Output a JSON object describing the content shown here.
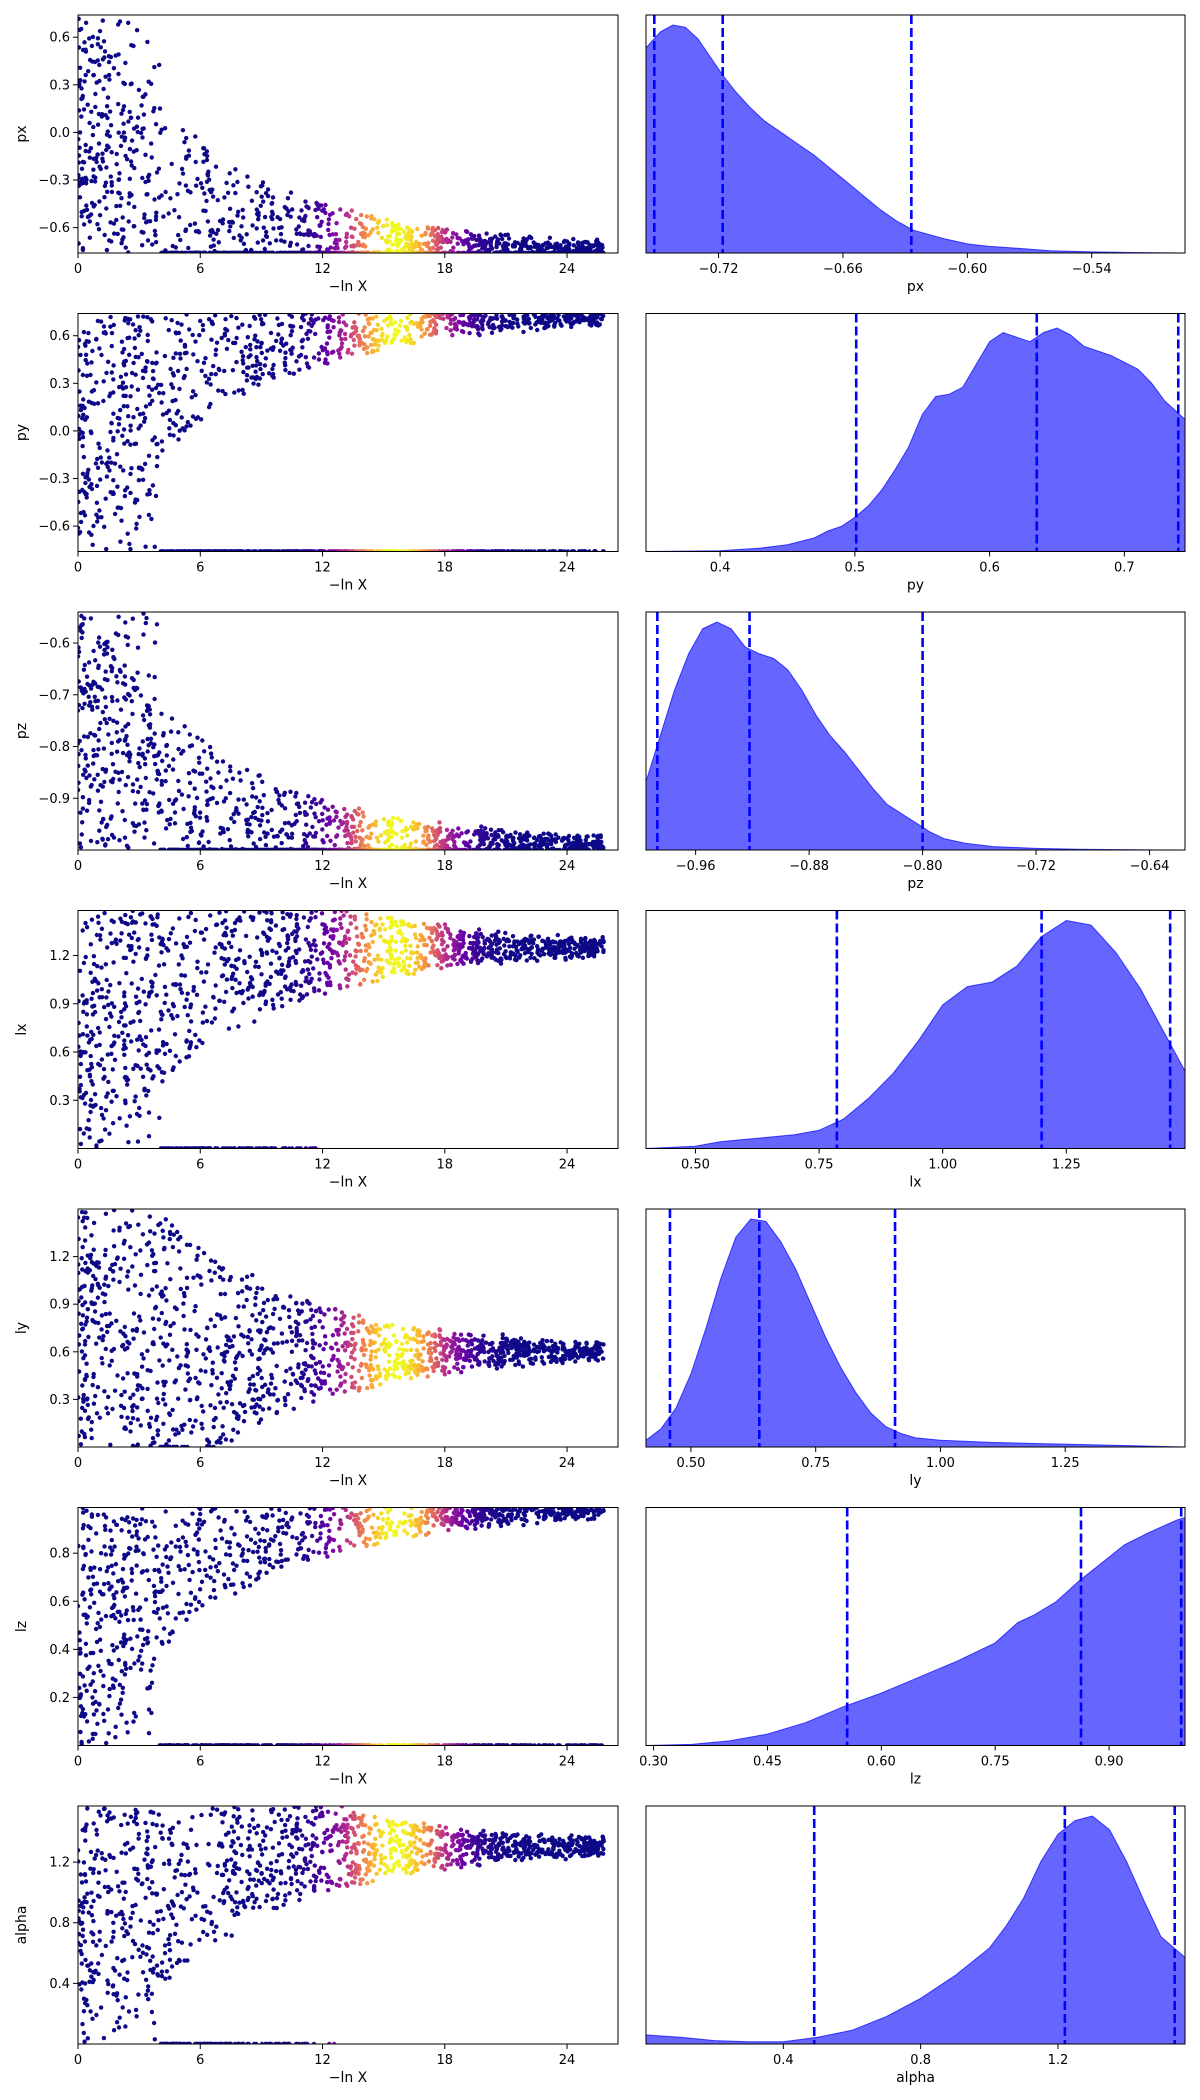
{
  "figure": {
    "type": "dynesty-trace-plot",
    "trace_xlabel": "−ln X",
    "scatter_colormap": "plasma",
    "kde_fill_color": "#0000ff",
    "kde_fill_opacity": 0.6,
    "quantile_line_color": "#0000ff",
    "quantile_line_style": "dashed"
  },
  "chart_data": [
    {
      "param": "px",
      "trace": {
        "type": "scatter",
        "xlabel": "−ln X",
        "ylabel": "px",
        "xlim": [
          0,
          26.5
        ],
        "xticks": [
          "0",
          "6",
          "12",
          "18",
          "24"
        ],
        "ylim": [
          -0.76,
          0.74
        ],
        "yticks": [
          "0.6",
          "0.3",
          "0.0",
          "−0.3",
          "−0.6"
        ],
        "ytick_values": [
          0.6,
          0.3,
          0.0,
          -0.3,
          -0.6
        ],
        "converge_to": -0.74
      },
      "posterior": {
        "type": "area",
        "xlabel": "px",
        "xlim": [
          -0.755,
          -0.495
        ],
        "xticks": [
          "−0.72",
          "−0.66",
          "−0.60",
          "−0.54"
        ],
        "xtick_values": [
          -0.72,
          -0.66,
          -0.6,
          -0.54
        ],
        "quantiles": [
          -0.751,
          -0.718,
          -0.627
        ],
        "density": {
          "x": [
            -0.755,
            -0.748,
            -0.742,
            -0.736,
            -0.73,
            -0.724,
            -0.718,
            -0.712,
            -0.705,
            -0.698,
            -0.69,
            -0.682,
            -0.674,
            -0.666,
            -0.658,
            -0.65,
            -0.642,
            -0.634,
            -0.626,
            -0.618,
            -0.61,
            -0.6,
            -0.59,
            -0.575,
            -0.56,
            -0.54,
            -0.52,
            -0.495
          ],
          "y": [
            0.9,
            0.97,
            1.0,
            0.99,
            0.94,
            0.86,
            0.78,
            0.71,
            0.64,
            0.58,
            0.53,
            0.48,
            0.43,
            0.37,
            0.31,
            0.25,
            0.19,
            0.14,
            0.1,
            0.08,
            0.06,
            0.04,
            0.03,
            0.02,
            0.01,
            0.005,
            0.002,
            0.0
          ]
        }
      }
    },
    {
      "param": "py",
      "trace": {
        "type": "scatter",
        "xlabel": "−ln X",
        "ylabel": "py",
        "xlim": [
          0,
          26.5
        ],
        "xticks": [
          "0",
          "6",
          "12",
          "18",
          "24"
        ],
        "ylim": [
          -0.76,
          0.74
        ],
        "yticks": [
          "0.6",
          "0.3",
          "0.0",
          "−0.3",
          "−0.6"
        ],
        "ytick_values": [
          0.6,
          0.3,
          0.0,
          -0.3,
          -0.6
        ],
        "converge_to": 0.72
      },
      "posterior": {
        "type": "area",
        "xlabel": "py",
        "xlim": [
          0.345,
          0.745
        ],
        "xticks": [
          "0.4",
          "0.5",
          "0.6",
          "0.7"
        ],
        "xtick_values": [
          0.4,
          0.5,
          0.6,
          0.7
        ],
        "quantiles": [
          0.501,
          0.635,
          0.74
        ],
        "density": {
          "x": [
            0.345,
            0.4,
            0.43,
            0.45,
            0.47,
            0.48,
            0.49,
            0.5,
            0.51,
            0.52,
            0.53,
            0.54,
            0.55,
            0.56,
            0.57,
            0.58,
            0.59,
            0.6,
            0.61,
            0.62,
            0.63,
            0.64,
            0.65,
            0.66,
            0.67,
            0.68,
            0.69,
            0.7,
            0.71,
            0.72,
            0.73,
            0.745
          ],
          "y": [
            0.0,
            0.003,
            0.015,
            0.03,
            0.06,
            0.09,
            0.11,
            0.15,
            0.2,
            0.27,
            0.36,
            0.46,
            0.6,
            0.68,
            0.69,
            0.72,
            0.82,
            0.92,
            0.96,
            0.94,
            0.92,
            0.96,
            0.98,
            0.95,
            0.9,
            0.88,
            0.86,
            0.83,
            0.8,
            0.74,
            0.66,
            0.58
          ]
        }
      }
    },
    {
      "param": "pz",
      "trace": {
        "type": "scatter",
        "xlabel": "−ln X",
        "ylabel": "pz",
        "xlim": [
          0,
          26.5
        ],
        "xticks": [
          "0",
          "6",
          "12",
          "18",
          "24"
        ],
        "ylim": [
          -1.0,
          -0.54
        ],
        "yticks": [
          "−0.6",
          "−0.7",
          "−0.8",
          "−0.9"
        ],
        "ytick_values": [
          -0.6,
          -0.7,
          -0.8,
          -0.9
        ],
        "converge_to": -0.99
      },
      "posterior": {
        "type": "area",
        "xlabel": "pz",
        "xlim": [
          -0.995,
          -0.615
        ],
        "xticks": [
          "−0.96",
          "−0.88",
          "−0.80",
          "−0.72",
          "−0.64"
        ],
        "xtick_values": [
          -0.96,
          -0.88,
          -0.8,
          -0.72,
          -0.64
        ],
        "quantiles": [
          -0.987,
          -0.922,
          -0.8
        ],
        "density": {
          "x": [
            -0.995,
            -0.985,
            -0.975,
            -0.965,
            -0.955,
            -0.945,
            -0.935,
            -0.925,
            -0.915,
            -0.905,
            -0.895,
            -0.885,
            -0.875,
            -0.865,
            -0.855,
            -0.845,
            -0.835,
            -0.825,
            -0.815,
            -0.805,
            -0.795,
            -0.785,
            -0.77,
            -0.75,
            -0.72,
            -0.69,
            -0.65,
            -0.615
          ],
          "y": [
            0.3,
            0.5,
            0.7,
            0.86,
            0.97,
            1.0,
            0.97,
            0.89,
            0.86,
            0.84,
            0.79,
            0.7,
            0.59,
            0.5,
            0.43,
            0.35,
            0.27,
            0.2,
            0.16,
            0.12,
            0.08,
            0.05,
            0.03,
            0.015,
            0.007,
            0.003,
            0.001,
            0.0
          ]
        }
      }
    },
    {
      "param": "lx",
      "trace": {
        "type": "scatter",
        "xlabel": "−ln X",
        "ylabel": "lx",
        "xlim": [
          0,
          26.5
        ],
        "xticks": [
          "0",
          "6",
          "12",
          "18",
          "24"
        ],
        "ylim": [
          0.0,
          1.48
        ],
        "yticks": [
          "1.2",
          "0.9",
          "0.6",
          "0.3"
        ],
        "ytick_values": [
          1.2,
          0.9,
          0.6,
          0.3
        ],
        "converge_to": 1.25
      },
      "posterior": {
        "type": "area",
        "xlabel": "lx",
        "xlim": [
          0.4,
          1.49
        ],
        "xticks": [
          "0.50",
          "0.75",
          "1.00",
          "1.25"
        ],
        "xtick_values": [
          0.5,
          0.75,
          1.0,
          1.25
        ],
        "quantiles": [
          0.786,
          1.2,
          1.46
        ],
        "density": {
          "x": [
            0.4,
            0.5,
            0.55,
            0.6,
            0.65,
            0.7,
            0.75,
            0.8,
            0.85,
            0.9,
            0.95,
            1.0,
            1.05,
            1.1,
            1.15,
            1.2,
            1.25,
            1.3,
            1.35,
            1.4,
            1.45,
            1.49
          ],
          "y": [
            0.0,
            0.01,
            0.03,
            0.04,
            0.05,
            0.06,
            0.08,
            0.13,
            0.22,
            0.33,
            0.47,
            0.63,
            0.71,
            0.73,
            0.8,
            0.93,
            1.0,
            0.98,
            0.86,
            0.7,
            0.5,
            0.34
          ]
        }
      }
    },
    {
      "param": "ly",
      "trace": {
        "type": "scatter",
        "xlabel": "−ln X",
        "ylabel": "ly",
        "xlim": [
          0,
          26.5
        ],
        "xticks": [
          "0",
          "6",
          "12",
          "18",
          "24"
        ],
        "ylim": [
          0.0,
          1.5
        ],
        "yticks": [
          "1.2",
          "0.9",
          "0.6",
          "0.3"
        ],
        "ytick_values": [
          1.2,
          0.9,
          0.6,
          0.3
        ],
        "converge_to": 0.6
      },
      "posterior": {
        "type": "area",
        "xlabel": "ly",
        "xlim": [
          0.41,
          1.49
        ],
        "xticks": [
          "0.50",
          "0.75",
          "1.00",
          "1.25"
        ],
        "xtick_values": [
          0.5,
          0.75,
          1.0,
          1.25
        ],
        "quantiles": [
          0.458,
          0.637,
          0.909
        ],
        "density": {
          "x": [
            0.41,
            0.44,
            0.47,
            0.5,
            0.53,
            0.56,
            0.59,
            0.62,
            0.65,
            0.68,
            0.71,
            0.74,
            0.77,
            0.8,
            0.83,
            0.86,
            0.89,
            0.92,
            0.95,
            1.0,
            1.1,
            1.2,
            1.3,
            1.4,
            1.49
          ],
          "y": [
            0.03,
            0.08,
            0.17,
            0.32,
            0.52,
            0.74,
            0.92,
            1.0,
            0.99,
            0.9,
            0.78,
            0.63,
            0.48,
            0.35,
            0.24,
            0.15,
            0.09,
            0.06,
            0.04,
            0.03,
            0.02,
            0.015,
            0.01,
            0.005,
            0.0
          ]
        }
      }
    },
    {
      "param": "lz",
      "trace": {
        "type": "scatter",
        "xlabel": "−ln X",
        "ylabel": "lz",
        "xlim": [
          0,
          26.5
        ],
        "xticks": [
          "0",
          "6",
          "12",
          "18",
          "24"
        ],
        "ylim": [
          0.0,
          0.99
        ],
        "yticks": [
          "0.8",
          "0.6",
          "0.4",
          "0.2"
        ],
        "ytick_values": [
          0.8,
          0.6,
          0.4,
          0.2
        ],
        "converge_to": 0.98
      },
      "posterior": {
        "type": "area",
        "xlabel": "lz",
        "xlim": [
          0.29,
          1.0
        ],
        "xticks": [
          "0.30",
          "0.45",
          "0.60",
          "0.75",
          "0.90"
        ],
        "xtick_values": [
          0.3,
          0.45,
          0.6,
          0.75,
          0.9
        ],
        "quantiles": [
          0.555,
          0.863,
          0.995
        ],
        "density": {
          "x": [
            0.29,
            0.35,
            0.4,
            0.45,
            0.5,
            0.55,
            0.6,
            0.65,
            0.7,
            0.75,
            0.78,
            0.8,
            0.83,
            0.86,
            0.89,
            0.92,
            0.95,
            0.97,
            0.99,
            1.0
          ],
          "y": [
            0.0,
            0.005,
            0.02,
            0.05,
            0.1,
            0.17,
            0.23,
            0.3,
            0.37,
            0.45,
            0.54,
            0.57,
            0.63,
            0.72,
            0.8,
            0.88,
            0.93,
            0.96,
            0.99,
            1.0
          ]
        }
      }
    },
    {
      "param": "alpha",
      "trace": {
        "type": "scatter",
        "xlabel": "−ln X",
        "ylabel": "alpha",
        "xlim": [
          0,
          26.5
        ],
        "xticks": [
          "0",
          "6",
          "12",
          "18",
          "24"
        ],
        "ylim": [
          0.0,
          1.57
        ],
        "yticks": [
          "1.2",
          "0.8",
          "0.4"
        ],
        "ytick_values": [
          1.2,
          0.8,
          0.4
        ],
        "converge_to": 1.3
      },
      "posterior": {
        "type": "area",
        "xlabel": "alpha",
        "xlim": [
          0.0,
          1.57
        ],
        "xticks": [
          "0.4",
          "0.8",
          "1.2"
        ],
        "xtick_values": [
          0.4,
          0.8,
          1.2
        ],
        "quantiles": [
          0.49,
          1.22,
          1.54
        ],
        "density": {
          "x": [
            0.0,
            0.1,
            0.2,
            0.3,
            0.4,
            0.5,
            0.6,
            0.7,
            0.8,
            0.9,
            1.0,
            1.05,
            1.1,
            1.15,
            1.2,
            1.25,
            1.3,
            1.35,
            1.4,
            1.45,
            1.5,
            1.57
          ],
          "y": [
            0.04,
            0.03,
            0.015,
            0.01,
            0.01,
            0.03,
            0.06,
            0.12,
            0.2,
            0.3,
            0.42,
            0.52,
            0.64,
            0.8,
            0.92,
            0.98,
            1.0,
            0.94,
            0.8,
            0.63,
            0.47,
            0.38
          ]
        }
      }
    }
  ]
}
